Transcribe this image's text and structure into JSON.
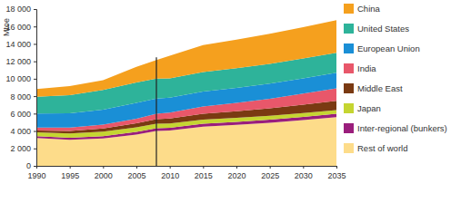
{
  "chart_data": {
    "type": "area",
    "stacked": true,
    "y_label": "Mtoe",
    "x": [
      1990,
      1995,
      2000,
      2005,
      2008,
      2010,
      2015,
      2020,
      2025,
      2030,
      2035
    ],
    "xlim": [
      1990,
      2035
    ],
    "xticks": [
      1990,
      1995,
      2000,
      2005,
      2010,
      2015,
      2020,
      2025,
      2030,
      2035
    ],
    "ylim": [
      0,
      18000
    ],
    "yticks": [
      0,
      {
        "value": 2000,
        "label": "2 000"
      },
      {
        "value": 4000,
        "label": "4 000"
      },
      {
        "value": 6000,
        "label": "6 000"
      },
      {
        "value": 8000,
        "label": "8 000"
      },
      {
        "value": 10000,
        "label": "10 000"
      },
      {
        "value": 12000,
        "label": "12 000"
      },
      {
        "value": 14000,
        "label": "14 000"
      },
      {
        "value": 16000,
        "label": "16 000"
      },
      {
        "value": 18000,
        "label": "18 000"
      }
    ],
    "grid": false,
    "vline_x": 2008,
    "series": [
      {
        "name": "China",
        "color": "#f5a01e",
        "values": [
          870,
          1050,
          1130,
          1800,
          2130,
          2600,
          3100,
          3300,
          3450,
          3600,
          3750
        ]
      },
      {
        "name": "United States",
        "color": "#2eb39a",
        "values": [
          1920,
          2070,
          2270,
          2320,
          2280,
          2200,
          2240,
          2250,
          2260,
          2280,
          2300
        ]
      },
      {
        "name": "European Union",
        "color": "#1a8fd6",
        "values": [
          1630,
          1650,
          1700,
          1820,
          1750,
          1720,
          1720,
          1730,
          1740,
          1760,
          1780
        ]
      },
      {
        "name": "India",
        "color": "#e8576a",
        "values": [
          320,
          380,
          460,
          540,
          620,
          680,
          820,
          950,
          1100,
          1270,
          1430
        ]
      },
      {
        "name": "Middle East",
        "color": "#7a3a12",
        "values": [
          230,
          300,
          350,
          450,
          530,
          580,
          680,
          760,
          850,
          960,
          1060
        ]
      },
      {
        "name": "Japan",
        "color": "#c5d531",
        "values": [
          440,
          490,
          520,
          530,
          500,
          480,
          470,
          460,
          450,
          440,
          430
        ]
      },
      {
        "name": "Inter-regional (bunkers)",
        "color": "#9a1e7c",
        "values": [
          200,
          220,
          260,
          300,
          330,
          330,
          340,
          350,
          360,
          370,
          380
        ]
      },
      {
        "name": "Rest of world",
        "color": "#fddc8a",
        "values": [
          3200,
          3000,
          3150,
          3600,
          4000,
          4050,
          4500,
          4700,
          4950,
          5250,
          5600
        ]
      }
    ]
  }
}
